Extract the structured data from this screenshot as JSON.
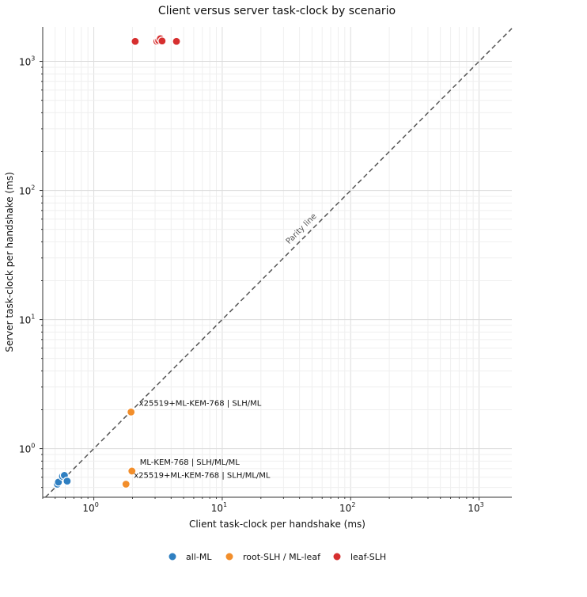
{
  "chart_data": {
    "type": "scatter",
    "title": "Client versus server task-clock by scenario",
    "xlabel": "Client task-clock per handshake (ms)",
    "ylabel": "Server task-clock per handshake (ms)",
    "xscale": "log",
    "yscale": "log",
    "xlim": [
      0.4,
      1800
    ],
    "ylim": [
      0.42,
      1850
    ],
    "x_ticks": [
      {
        "base": "10",
        "exp": "0",
        "value": 1
      },
      {
        "base": "10",
        "exp": "1",
        "value": 10
      },
      {
        "base": "10",
        "exp": "2",
        "value": 100
      },
      {
        "base": "10",
        "exp": "3",
        "value": 1000
      }
    ],
    "y_ticks": [
      {
        "base": "10",
        "exp": "0",
        "value": 1
      },
      {
        "base": "10",
        "exp": "1",
        "value": 10
      },
      {
        "base": "10",
        "exp": "2",
        "value": 100
      },
      {
        "base": "10",
        "exp": "3",
        "value": 1000
      }
    ],
    "grid": true,
    "parity_line": {
      "label": "Parity line"
    },
    "legend": {
      "placement": "bottom"
    },
    "series": [
      {
        "name": "all-ML",
        "color": "#2f7fc1",
        "points": [
          {
            "x": 0.52,
            "y": 0.53
          },
          {
            "x": 0.53,
            "y": 0.55
          },
          {
            "x": 0.57,
            "y": 0.61
          },
          {
            "x": 0.59,
            "y": 0.62
          },
          {
            "x": 0.62,
            "y": 0.56
          }
        ]
      },
      {
        "name": "root-SLH / ML-leaf",
        "color": "#f28e2b",
        "points": [
          {
            "x": 1.95,
            "y": 1.92,
            "label": "x25519+ML-KEM-768 | SLH/ML"
          },
          {
            "x": 1.98,
            "y": 0.67,
            "label": "ML-KEM-768 | SLH/ML/ML"
          },
          {
            "x": 1.78,
            "y": 0.53,
            "label": "x25519+ML-KEM-768 | SLH/ML/ML"
          }
        ]
      },
      {
        "name": "leaf-SLH",
        "color": "#d62f2f",
        "points": [
          {
            "x": 2.1,
            "y": 1430
          },
          {
            "x": 3.1,
            "y": 1430
          },
          {
            "x": 3.2,
            "y": 1450
          },
          {
            "x": 3.3,
            "y": 1500
          },
          {
            "x": 3.4,
            "y": 1440
          },
          {
            "x": 4.4,
            "y": 1430
          }
        ]
      }
    ]
  }
}
